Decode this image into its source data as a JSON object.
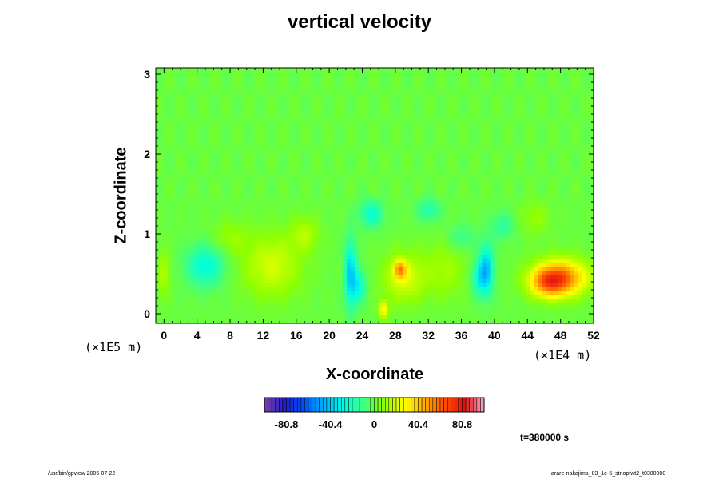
{
  "chart_data": {
    "type": "heatmap",
    "title": "vertical velocity",
    "xlabel": "X-coordinate",
    "ylabel": "Z-coordinate",
    "x_unit": "(×1E4 m)",
    "y_unit": "(×1E5 m)",
    "x_ticks": [
      "0",
      "4",
      "8",
      "12",
      "16",
      "20",
      "24",
      "28",
      "32",
      "36",
      "40",
      "44",
      "48",
      "52"
    ],
    "y_ticks": [
      "0",
      "1",
      "2",
      "3"
    ],
    "xlim": [
      -1,
      52
    ],
    "ylim": [
      -0.12,
      3.08
    ],
    "colorbar": {
      "range": [
        -101,
        101
      ],
      "tick_labels": [
        "-80.8",
        "-40.4",
        "0",
        "40.4",
        "80.8"
      ],
      "tick_values": [
        -80.8,
        -40.4,
        0,
        40.4,
        80.8
      ],
      "colors": [
        "#7a3fa0",
        "#2020c8",
        "#0050ff",
        "#00b4ff",
        "#00ffe0",
        "#40ff80",
        "#90ff00",
        "#ffff00",
        "#ffb000",
        "#ff5000",
        "#e01010",
        "#f4a8c0"
      ]
    },
    "background_value": 0,
    "features": [
      {
        "x": 48,
        "z": 0.45,
        "value": 55,
        "sx": 2.3,
        "sz": 0.16
      },
      {
        "x": 46.5,
        "z": 0.38,
        "value": 35,
        "sx": 1.5,
        "sz": 0.12
      },
      {
        "x": 13,
        "z": 0.6,
        "value": 20,
        "sx": 2.5,
        "sz": 0.28
      },
      {
        "x": 29,
        "z": 0.45,
        "value": 22,
        "sx": 1.8,
        "sz": 0.22
      },
      {
        "x": 34,
        "z": 0.55,
        "value": 12,
        "sx": 1.8,
        "sz": 0.25
      },
      {
        "x": 28.5,
        "z": 0.55,
        "value": 40,
        "sx": 0.5,
        "sz": 0.08
      },
      {
        "x": 26.5,
        "z": 0.05,
        "value": 30,
        "sx": 0.4,
        "sz": 0.08
      },
      {
        "x": 5,
        "z": 0.6,
        "value": -28,
        "sx": 1.6,
        "sz": 0.18
      },
      {
        "x": 22.5,
        "z": 0.5,
        "value": -38,
        "sx": 0.5,
        "sz": 0.3
      },
      {
        "x": 23.5,
        "z": 0.35,
        "value": -25,
        "sx": 0.6,
        "sz": 0.15
      },
      {
        "x": 39,
        "z": 0.55,
        "value": -42,
        "sx": 0.6,
        "sz": 0.22
      },
      {
        "x": 38,
        "z": 0.45,
        "value": -25,
        "sx": 0.6,
        "sz": 0.15
      },
      {
        "x": 25,
        "z": 1.25,
        "value": -25,
        "sx": 1.0,
        "sz": 0.12
      },
      {
        "x": 32,
        "z": 1.3,
        "value": -18,
        "sx": 1.0,
        "sz": 0.1
      },
      {
        "x": 41,
        "z": 1.1,
        "value": -15,
        "sx": 1.0,
        "sz": 0.12
      },
      {
        "x": 17,
        "z": 1.0,
        "value": 14,
        "sx": 1.2,
        "sz": 0.15
      },
      {
        "x": 45,
        "z": 1.2,
        "value": 10,
        "sx": 1.2,
        "sz": 0.15
      },
      {
        "x": 8,
        "z": 0.95,
        "value": 10,
        "sx": 1.5,
        "sz": 0.15
      },
      {
        "x": 0,
        "z": 0.5,
        "value": 15,
        "sx": 0.5,
        "sz": 0.2
      },
      {
        "x": 36,
        "z": 0.95,
        "value": -12,
        "sx": 1.2,
        "sz": 0.12
      }
    ]
  },
  "annotation": {
    "time": "t=380000 s"
  },
  "footer": {
    "left": "/usr/bin/gpview 2005-07-22",
    "right": "arare-nakajima_03_1e-5_stnopfwt2_t0380000"
  }
}
